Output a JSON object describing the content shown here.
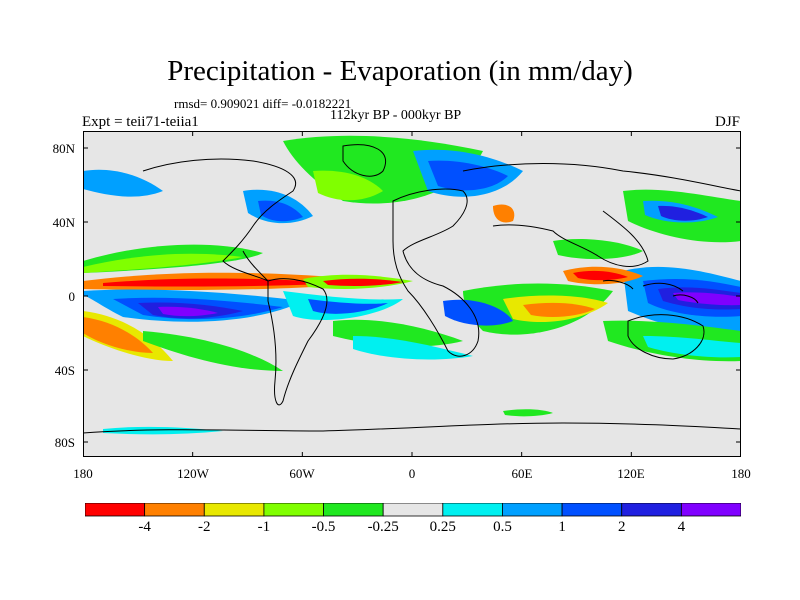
{
  "title": "Precipitation - Evaporation (in mm/day)",
  "stats_line": "rmsd= 0.909021 diff= -0.0182221",
  "period_line": "112kyr BP - 000kyr BP",
  "experiment_line": "Expt = teii71-teiia1",
  "season": "DJF",
  "lat_labels": [
    "80N",
    "40N",
    "0",
    "40S",
    "80S"
  ],
  "lon_labels": [
    "180",
    "120W",
    "60W",
    "0",
    "60E",
    "120E",
    "180"
  ],
  "colorbar": {
    "labels": [
      "-4",
      "-2",
      "-1",
      "-0.5",
      "-0.25",
      "0.25",
      "0.5",
      "1",
      "2",
      "4"
    ],
    "colors": [
      "#ff0000",
      "#ff8000",
      "#e8e800",
      "#80ff00",
      "#20e820",
      "#e6e6e6",
      "#00f0f0",
      "#00a0ff",
      "#0050ff",
      "#2020e0",
      "#8000ff"
    ]
  },
  "map_colors": {
    "background": "#e6e6e6",
    "coastline": "#000000"
  }
}
